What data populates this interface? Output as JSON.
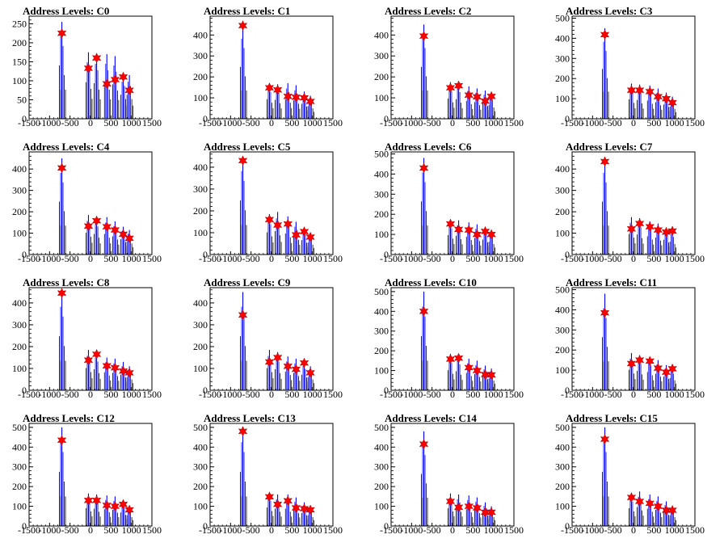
{
  "chart_data": [
    {
      "type": "histogram",
      "title": "Address Levels: C0",
      "xlim": [
        -1500,
        1500
      ],
      "ylim": [
        0,
        270
      ],
      "yticks": [
        0,
        50,
        100,
        150,
        200,
        250
      ],
      "xticks": [
        -1500,
        -1000,
        -500,
        0,
        500,
        1000,
        1500
      ],
      "peaks": [
        {
          "x": -700,
          "height": 255,
          "marker": 225
        },
        {
          "x": -50,
          "height": 175,
          "marker": 133
        },
        {
          "x": 150,
          "height": 170,
          "marker": 160
        },
        {
          "x": 400,
          "height": 170,
          "marker": 92
        },
        {
          "x": 600,
          "height": 165,
          "marker": 103
        },
        {
          "x": 800,
          "height": 115,
          "marker": 110
        },
        {
          "x": 950,
          "height": 115,
          "marker": 75
        }
      ]
    },
    {
      "type": "histogram",
      "title": "Address Levels: C1",
      "xlim": [
        -1500,
        1500
      ],
      "ylim": [
        0,
        490
      ],
      "yticks": [
        0,
        100,
        200,
        300,
        400
      ],
      "xticks": [
        -1500,
        -1000,
        -500,
        0,
        500,
        1000,
        1500
      ],
      "peaks": [
        {
          "x": -700,
          "height": 450,
          "marker": 445
        },
        {
          "x": -50,
          "height": 170,
          "marker": 148
        },
        {
          "x": 150,
          "height": 165,
          "marker": 138
        },
        {
          "x": 400,
          "height": 170,
          "marker": 107
        },
        {
          "x": 600,
          "height": 160,
          "marker": 103
        },
        {
          "x": 800,
          "height": 130,
          "marker": 100
        },
        {
          "x": 950,
          "height": 110,
          "marker": 83
        }
      ]
    },
    {
      "type": "histogram",
      "title": "Address Levels: C2",
      "xlim": [
        -1500,
        1500
      ],
      "ylim": [
        0,
        490
      ],
      "yticks": [
        0,
        100,
        200,
        300,
        400
      ],
      "xticks": [
        -1500,
        -1000,
        -500,
        0,
        500,
        1000,
        1500
      ],
      "peaks": [
        {
          "x": -700,
          "height": 450,
          "marker": 395
        },
        {
          "x": -50,
          "height": 175,
          "marker": 148
        },
        {
          "x": 150,
          "height": 170,
          "marker": 158
        },
        {
          "x": 400,
          "height": 155,
          "marker": 113
        },
        {
          "x": 600,
          "height": 145,
          "marker": 105
        },
        {
          "x": 800,
          "height": 135,
          "marker": 84
        },
        {
          "x": 950,
          "height": 120,
          "marker": 107
        }
      ]
    },
    {
      "type": "histogram",
      "title": "Address Levels: C3",
      "xlim": [
        -1500,
        1500
      ],
      "ylim": [
        0,
        510
      ],
      "yticks": [
        0,
        100,
        200,
        300,
        400,
        500
      ],
      "xticks": [
        -1500,
        -1000,
        -500,
        0,
        500,
        1000,
        1500
      ],
      "peaks": [
        {
          "x": -700,
          "height": 450,
          "marker": 418
        },
        {
          "x": -50,
          "height": 175,
          "marker": 142
        },
        {
          "x": 150,
          "height": 170,
          "marker": 142
        },
        {
          "x": 400,
          "height": 165,
          "marker": 135
        },
        {
          "x": 600,
          "height": 150,
          "marker": 110
        },
        {
          "x": 800,
          "height": 130,
          "marker": 100
        },
        {
          "x": 950,
          "height": 110,
          "marker": 80
        }
      ]
    },
    {
      "type": "histogram",
      "title": "Address Levels: C4",
      "xlim": [
        -1500,
        1500
      ],
      "ylim": [
        0,
        480
      ],
      "yticks": [
        0,
        100,
        200,
        300,
        400
      ],
      "xticks": [
        -1500,
        -1000,
        -500,
        0,
        500,
        1000,
        1500
      ],
      "peaks": [
        {
          "x": -700,
          "height": 450,
          "marker": 405
        },
        {
          "x": -50,
          "height": 185,
          "marker": 133
        },
        {
          "x": 150,
          "height": 175,
          "marker": 158
        },
        {
          "x": 400,
          "height": 175,
          "marker": 130
        },
        {
          "x": 600,
          "height": 155,
          "marker": 115
        },
        {
          "x": 800,
          "height": 130,
          "marker": 95
        },
        {
          "x": 950,
          "height": 115,
          "marker": 76
        }
      ]
    },
    {
      "type": "histogram",
      "title": "Address Levels: C5",
      "xlim": [
        -1500,
        1500
      ],
      "ylim": [
        0,
        470
      ],
      "yticks": [
        0,
        100,
        200,
        300,
        400
      ],
      "xticks": [
        -1500,
        -1000,
        -500,
        0,
        500,
        1000,
        1500
      ],
      "peaks": [
        {
          "x": -700,
          "height": 450,
          "marker": 430
        },
        {
          "x": -50,
          "height": 185,
          "marker": 160
        },
        {
          "x": 150,
          "height": 195,
          "marker": 135
        },
        {
          "x": 400,
          "height": 175,
          "marker": 140
        },
        {
          "x": 600,
          "height": 150,
          "marker": 90
        },
        {
          "x": 800,
          "height": 120,
          "marker": 105
        },
        {
          "x": 950,
          "height": 100,
          "marker": 80
        }
      ]
    },
    {
      "type": "histogram",
      "title": "Address Levels: C6",
      "xlim": [
        -1500,
        1500
      ],
      "ylim": [
        0,
        510
      ],
      "yticks": [
        0,
        100,
        200,
        300,
        400,
        500
      ],
      "xticks": [
        -1500,
        -1000,
        -500,
        0,
        500,
        1000,
        1500
      ],
      "peaks": [
        {
          "x": -700,
          "height": 480,
          "marker": 430
        },
        {
          "x": -50,
          "height": 175,
          "marker": 152
        },
        {
          "x": 150,
          "height": 170,
          "marker": 125
        },
        {
          "x": 400,
          "height": 160,
          "marker": 122
        },
        {
          "x": 600,
          "height": 150,
          "marker": 100
        },
        {
          "x": 800,
          "height": 135,
          "marker": 115
        },
        {
          "x": 950,
          "height": 115,
          "marker": 100
        }
      ]
    },
    {
      "type": "histogram",
      "title": "Address Levels: C7",
      "xlim": [
        -1500,
        1500
      ],
      "ylim": [
        0,
        480
      ],
      "yticks": [
        0,
        100,
        200,
        300,
        400
      ],
      "xticks": [
        -1500,
        -1000,
        -500,
        0,
        500,
        1000,
        1500
      ],
      "peaks": [
        {
          "x": -700,
          "height": 450,
          "marker": 435
        },
        {
          "x": -50,
          "height": 175,
          "marker": 120
        },
        {
          "x": 150,
          "height": 170,
          "marker": 145
        },
        {
          "x": 400,
          "height": 155,
          "marker": 130
        },
        {
          "x": 600,
          "height": 145,
          "marker": 115
        },
        {
          "x": 800,
          "height": 125,
          "marker": 105
        },
        {
          "x": 950,
          "height": 110,
          "marker": 110
        }
      ]
    },
    {
      "type": "histogram",
      "title": "Address Levels: C8",
      "xlim": [
        -1500,
        1500
      ],
      "ylim": [
        0,
        470
      ],
      "yticks": [
        0,
        100,
        200,
        300,
        400
      ],
      "xticks": [
        -1500,
        -1000,
        -500,
        0,
        500,
        1000,
        1500
      ],
      "peaks": [
        {
          "x": -700,
          "height": 450,
          "marker": 445
        },
        {
          "x": -50,
          "height": 185,
          "marker": 138
        },
        {
          "x": 150,
          "height": 175,
          "marker": 165
        },
        {
          "x": 400,
          "height": 150,
          "marker": 112
        },
        {
          "x": 600,
          "height": 145,
          "marker": 103
        },
        {
          "x": 800,
          "height": 130,
          "marker": 88
        },
        {
          "x": 950,
          "height": 110,
          "marker": 80
        }
      ]
    },
    {
      "type": "histogram",
      "title": "Address Levels: C9",
      "xlim": [
        -1500,
        1500
      ],
      "ylim": [
        0,
        470
      ],
      "yticks": [
        0,
        100,
        200,
        300,
        400
      ],
      "xticks": [
        -1500,
        -1000,
        -500,
        0,
        500,
        1000,
        1500
      ],
      "peaks": [
        {
          "x": -700,
          "height": 450,
          "marker": 345
        },
        {
          "x": -50,
          "height": 185,
          "marker": 130
        },
        {
          "x": 150,
          "height": 175,
          "marker": 150
        },
        {
          "x": 400,
          "height": 155,
          "marker": 110
        },
        {
          "x": 600,
          "height": 145,
          "marker": 96
        },
        {
          "x": 800,
          "height": 130,
          "marker": 125
        },
        {
          "x": 950,
          "height": 110,
          "marker": 80
        }
      ]
    },
    {
      "type": "histogram",
      "title": "Address Levels: C10",
      "xlim": [
        -1500,
        1500
      ],
      "ylim": [
        0,
        520
      ],
      "yticks": [
        0,
        100,
        200,
        300,
        400,
        500
      ],
      "xticks": [
        -1500,
        -1000,
        -500,
        0,
        500,
        1000,
        1500
      ],
      "peaks": [
        {
          "x": -700,
          "height": 500,
          "marker": 400
        },
        {
          "x": -50,
          "height": 185,
          "marker": 158
        },
        {
          "x": 150,
          "height": 175,
          "marker": 163
        },
        {
          "x": 400,
          "height": 160,
          "marker": 115
        },
        {
          "x": 600,
          "height": 150,
          "marker": 100
        },
        {
          "x": 800,
          "height": 125,
          "marker": 80
        },
        {
          "x": 950,
          "height": 110,
          "marker": 78
        }
      ]
    },
    {
      "type": "histogram",
      "title": "Address Levels: C11",
      "xlim": [
        -1500,
        1500
      ],
      "ylim": [
        0,
        510
      ],
      "yticks": [
        0,
        100,
        200,
        300,
        400,
        500
      ],
      "xticks": [
        -1500,
        -1000,
        -500,
        0,
        500,
        1000,
        1500
      ],
      "peaks": [
        {
          "x": -700,
          "height": 480,
          "marker": 385
        },
        {
          "x": -50,
          "height": 185,
          "marker": 133
        },
        {
          "x": 150,
          "height": 175,
          "marker": 150
        },
        {
          "x": 400,
          "height": 165,
          "marker": 145
        },
        {
          "x": 600,
          "height": 150,
          "marker": 110
        },
        {
          "x": 800,
          "height": 125,
          "marker": 90
        },
        {
          "x": 950,
          "height": 110,
          "marker": 107
        }
      ]
    },
    {
      "type": "histogram",
      "title": "Address Levels: C12",
      "xlim": [
        -1500,
        1500
      ],
      "ylim": [
        0,
        520
      ],
      "yticks": [
        0,
        100,
        200,
        300,
        400,
        500
      ],
      "xticks": [
        -1500,
        -1000,
        -500,
        0,
        500,
        1000,
        1500
      ],
      "peaks": [
        {
          "x": -700,
          "height": 500,
          "marker": 435
        },
        {
          "x": -50,
          "height": 165,
          "marker": 130
        },
        {
          "x": 150,
          "height": 160,
          "marker": 130
        },
        {
          "x": 400,
          "height": 155,
          "marker": 105
        },
        {
          "x": 600,
          "height": 150,
          "marker": 100
        },
        {
          "x": 800,
          "height": 125,
          "marker": 110
        },
        {
          "x": 950,
          "height": 100,
          "marker": 82
        }
      ]
    },
    {
      "type": "histogram",
      "title": "Address Levels: C13",
      "xlim": [
        -1500,
        1500
      ],
      "ylim": [
        0,
        520
      ],
      "yticks": [
        0,
        100,
        200,
        300,
        400,
        500
      ],
      "xticks": [
        -1500,
        -1000,
        -500,
        0,
        500,
        1000,
        1500
      ],
      "peaks": [
        {
          "x": -700,
          "height": 500,
          "marker": 480
        },
        {
          "x": -50,
          "height": 170,
          "marker": 148
        },
        {
          "x": 150,
          "height": 160,
          "marker": 110
        },
        {
          "x": 400,
          "height": 160,
          "marker": 128
        },
        {
          "x": 600,
          "height": 145,
          "marker": 92
        },
        {
          "x": 800,
          "height": 120,
          "marker": 88
        },
        {
          "x": 950,
          "height": 100,
          "marker": 82
        }
      ]
    },
    {
      "type": "histogram",
      "title": "Address Levels: C14",
      "xlim": [
        -1500,
        1500
      ],
      "ylim": [
        0,
        520
      ],
      "yticks": [
        0,
        100,
        200,
        300,
        400,
        500
      ],
      "xticks": [
        -1500,
        -1000,
        -500,
        0,
        500,
        1000,
        1500
      ],
      "peaks": [
        {
          "x": -700,
          "height": 480,
          "marker": 415
        },
        {
          "x": -50,
          "height": 165,
          "marker": 125
        },
        {
          "x": 150,
          "height": 160,
          "marker": 95
        },
        {
          "x": 400,
          "height": 155,
          "marker": 100
        },
        {
          "x": 600,
          "height": 145,
          "marker": 92
        },
        {
          "x": 800,
          "height": 120,
          "marker": 70
        },
        {
          "x": 950,
          "height": 100,
          "marker": 70
        }
      ]
    },
    {
      "type": "histogram",
      "title": "Address Levels: C15",
      "xlim": [
        -1500,
        1500
      ],
      "ylim": [
        0,
        520
      ],
      "yticks": [
        0,
        100,
        200,
        300,
        400,
        500
      ],
      "xticks": [
        -1500,
        -1000,
        -500,
        0,
        500,
        1000,
        1500
      ],
      "peaks": [
        {
          "x": -700,
          "height": 500,
          "marker": 440
        },
        {
          "x": -50,
          "height": 165,
          "marker": 145
        },
        {
          "x": 150,
          "height": 175,
          "marker": 125
        },
        {
          "x": 400,
          "height": 160,
          "marker": 115
        },
        {
          "x": 600,
          "height": 150,
          "marker": 100
        },
        {
          "x": 800,
          "height": 125,
          "marker": 80
        },
        {
          "x": 950,
          "height": 100,
          "marker": 80
        }
      ]
    }
  ]
}
